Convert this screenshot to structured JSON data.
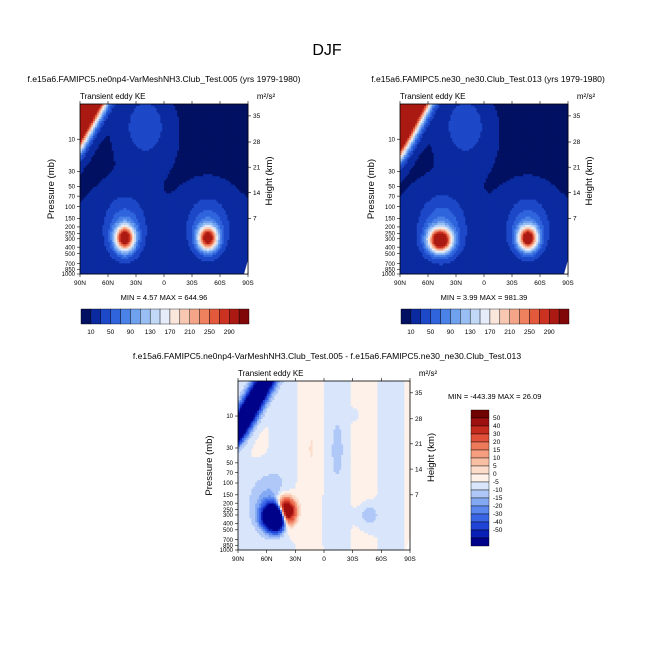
{
  "figure": {
    "title": "DJF"
  },
  "palettes": {
    "full": [
      "#021062",
      "#0b2aa0",
      "#1d48c8",
      "#2f64dc",
      "#4b82e8",
      "#6fa1ef",
      "#98bef3",
      "#c2d8f7",
      "#e6edfa",
      "#fbe6dc",
      "#f8c7b2",
      "#f4a587",
      "#ef815f",
      "#e2593c",
      "#cc3222",
      "#aa1a12",
      "#800808"
    ],
    "diff": [
      "#00038a",
      "#0a1fb4",
      "#1f44d6",
      "#3a66e6",
      "#5b88ee",
      "#84a9f3",
      "#afc8f7",
      "#d8e5fa",
      "#fdf1ea",
      "#fcdcca",
      "#f9bfa5",
      "#f59e80",
      "#ee7a5c",
      "#e0503a",
      "#c52a1f",
      "#9e0f0f",
      "#700202"
    ]
  },
  "panels": {
    "left": {
      "case_title": "f.e15a6.FAMIPC5.ne0np4-VarMeshNH3.Club_Test.005 (yrs 1979-1980)",
      "label": "Transient eddy KE",
      "units": "m²/s²",
      "ylabel": "Pressure (mb)",
      "ylabel_right": "Height (km)",
      "min_max": "MIN =   4.57  MAX = 644.96"
    },
    "right": {
      "case_title": "f.e15a6.FAMIPC5.ne30_ne30.Club_Test.013 (yrs 1979-1980)",
      "label": "Transient eddy KE",
      "units": "m²/s²",
      "ylabel": "Pressure (mb)",
      "ylabel_right": "Height (km)",
      "min_max": "MIN =   3.99  MAX = 981.39"
    },
    "bottom": {
      "case_title": "f.e15a6.FAMIPC5.ne0np4-VarMeshNH3.Club_Test.005 - f.e15a6.FAMIPC5.ne30_ne30.Club_Test.013",
      "label": "Transient eddy KE",
      "units": "m²/s²",
      "ylabel": "Pressure (mb)",
      "ylabel_right": "Height (km)",
      "min_max": "MIN = -443.39  MAX =  26.09"
    }
  },
  "chart_data": [
    {
      "type": "heatmap",
      "title": "f.e15a6.FAMIPC5.ne0np4-VarMeshNH3.Club_Test.005 (yrs 1979-1980)",
      "xlabel": "",
      "ylabel": "Pressure (mb)",
      "x_ticks": [
        "90N",
        "60N",
        "30N",
        "0",
        "30S",
        "60S",
        "90S"
      ],
      "y_ticks": [
        "10",
        "30",
        "50",
        "70",
        "100",
        "150",
        "200",
        "250",
        "300",
        "400",
        "500",
        "700",
        "850",
        "1000"
      ],
      "y_right_ticks": [
        "35",
        "28",
        "21",
        "14",
        "7"
      ],
      "ylim": [
        1000,
        3
      ],
      "y_scale": "log",
      "colorbar_levels": [
        10,
        30,
        50,
        70,
        90,
        110,
        130,
        150,
        170,
        190,
        210,
        230,
        250,
        270,
        290
      ],
      "colorbar_labels": [
        "10",
        "50",
        "90",
        "130",
        "170",
        "210",
        "250",
        "290"
      ],
      "min": 4.57,
      "max": 644.96
    },
    {
      "type": "heatmap",
      "title": "f.e15a6.FAMIPC5.ne30_ne30.Club_Test.013 (yrs 1979-1980)",
      "xlabel": "",
      "ylabel": "Pressure (mb)",
      "x_ticks": [
        "90N",
        "60N",
        "30N",
        "0",
        "30S",
        "60S",
        "90S"
      ],
      "y_ticks": [
        "10",
        "30",
        "50",
        "70",
        "100",
        "150",
        "200",
        "250",
        "300",
        "400",
        "500",
        "700",
        "850",
        "1000"
      ],
      "y_right_ticks": [
        "35",
        "28",
        "21",
        "14",
        "7"
      ],
      "ylim": [
        1000,
        3
      ],
      "y_scale": "log",
      "colorbar_levels": [
        10,
        30,
        50,
        70,
        90,
        110,
        130,
        150,
        170,
        190,
        210,
        230,
        250,
        270,
        290
      ],
      "colorbar_labels": [
        "10",
        "50",
        "90",
        "130",
        "170",
        "210",
        "250",
        "290"
      ],
      "min": 3.99,
      "max": 981.39
    },
    {
      "type": "heatmap",
      "title": "f.e15a6.FAMIPC5.ne0np4-VarMeshNH3.Club_Test.005 - f.e15a6.FAMIPC5.ne30_ne30.Club_Test.013",
      "xlabel": "",
      "ylabel": "Pressure (mb)",
      "x_ticks": [
        "90N",
        "60N",
        "30N",
        "0",
        "30S",
        "60S",
        "90S"
      ],
      "y_ticks": [
        "10",
        "30",
        "50",
        "70",
        "100",
        "150",
        "200",
        "250",
        "300",
        "400",
        "500",
        "700",
        "850",
        "1000"
      ],
      "y_right_ticks": [
        "35",
        "28",
        "21",
        "14",
        "7"
      ],
      "ylim": [
        1000,
        3
      ],
      "y_scale": "log",
      "colorbar_levels": [
        -50,
        -40,
        -30,
        -20,
        -15,
        -10,
        -5,
        0,
        5,
        10,
        15,
        20,
        30,
        40,
        50
      ],
      "colorbar_labels": [
        "50",
        "40",
        "30",
        "20",
        "15",
        "10",
        "5",
        "0",
        "-5",
        "-10",
        "-15",
        "-20",
        "-30",
        "-40",
        "-50"
      ],
      "min": -443.39,
      "max": 26.09
    }
  ]
}
